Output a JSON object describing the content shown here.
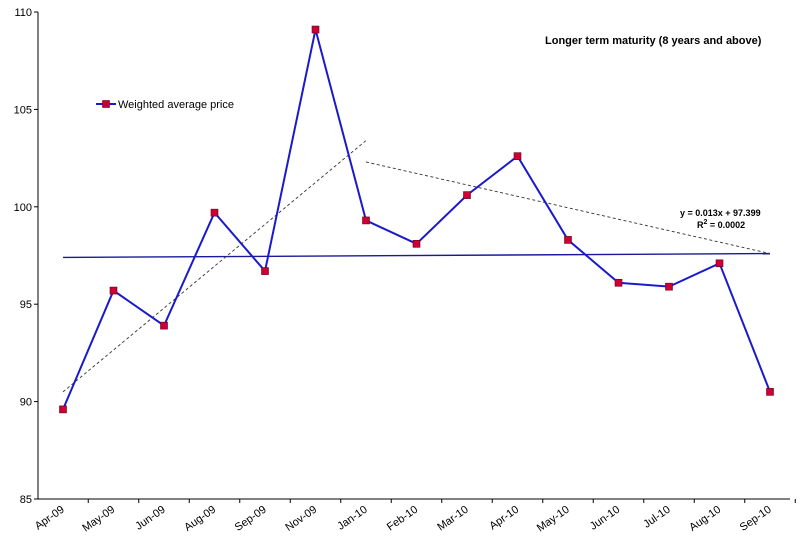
{
  "chart_data": {
    "type": "line",
    "title": "Longer term maturity (8 years and above)",
    "xlabel": "",
    "ylabel": "",
    "ylim": [
      85,
      110
    ],
    "yticks": [
      85,
      90,
      95,
      100,
      105,
      110
    ],
    "categories": [
      "Apr-09",
      "May-09",
      "Jun-09",
      "Aug-09",
      "Sep-09",
      "Nov-09",
      "Jan-10",
      "Feb-10",
      "Mar-10",
      "Apr-10",
      "May-10",
      "Jun-10",
      "Jul-10",
      "Aug-10",
      "Sep-10"
    ],
    "series": [
      {
        "name": "Weighted average price",
        "color": "#1a1acc",
        "marker_color": "#cc0033",
        "values": [
          89.6,
          95.7,
          93.9,
          99.7,
          96.7,
          109.1,
          99.3,
          98.1,
          100.6,
          102.6,
          98.3,
          96.1,
          95.9,
          97.1,
          90.5
        ]
      }
    ],
    "trendlines": [
      {
        "name": "overall-linear-trend",
        "style": "solid",
        "color": "#1a1a99",
        "x_start": 0,
        "y_start": 97.4,
        "x_end": 14,
        "y_end": 97.6
      },
      {
        "name": "early-trend",
        "style": "dashed",
        "color": "#333333",
        "x_start": 0,
        "y_start": 90.5,
        "x_end": 6,
        "y_end": 103.4
      },
      {
        "name": "late-trend",
        "style": "dashed",
        "color": "#333333",
        "x_start": 6,
        "y_start": 102.3,
        "x_end": 14,
        "y_end": 97.6
      }
    ],
    "equation": {
      "line1": "y = 0.013x + 97.399",
      "line2_prefix": "R",
      "line2_sup": "2",
      "line2_suffix": " = 0.0002"
    },
    "legend_position": "top-left"
  }
}
